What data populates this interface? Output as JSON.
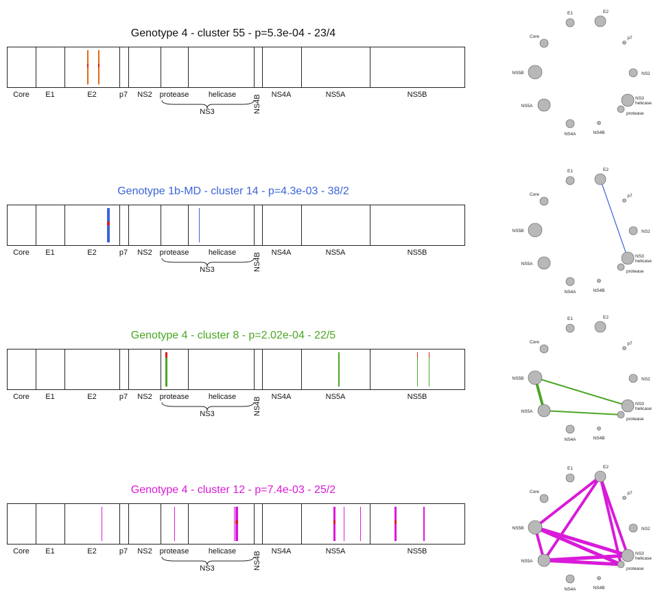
{
  "regions": [
    {
      "name": "Core",
      "label": "Core"
    },
    {
      "name": "E1",
      "label": "E1"
    },
    {
      "name": "E2",
      "label": "E2"
    },
    {
      "name": "p7",
      "label": "p7"
    },
    {
      "name": "NS2",
      "label": "NS2"
    },
    {
      "name": "protease",
      "label": "protease"
    },
    {
      "name": "helicase",
      "label": "helicase"
    },
    {
      "name": "NS4B",
      "label": "NS4B"
    },
    {
      "name": "NS4A",
      "label": "NS4A"
    },
    {
      "name": "NS5A",
      "label": "NS5A"
    },
    {
      "name": "NS5B",
      "label": "NS5B"
    }
  ],
  "ns3_label": "NS3",
  "network_nodes": [
    {
      "id": "E1",
      "label": "E1"
    },
    {
      "id": "E2",
      "label": "E2"
    },
    {
      "id": "Core",
      "label": "Core"
    },
    {
      "id": "p7",
      "label": "p7"
    },
    {
      "id": "NS5B",
      "label": "NS5B"
    },
    {
      "id": "NS2",
      "label": "NS2"
    },
    {
      "id": "NS5A",
      "label": "NS5A"
    },
    {
      "id": "NS3h",
      "label": "NS3\nhelicase"
    },
    {
      "id": "NS3p",
      "label": "protease"
    },
    {
      "id": "NS4A",
      "label": "NS4A"
    },
    {
      "id": "NS4B",
      "label": "NS4B"
    }
  ],
  "panels": [
    {
      "title": "Genotype 4 - cluster 55 - p=5.3e-04 - 23/4",
      "color": "#e06a10",
      "title_color": "#111111",
      "marks": [
        {
          "region": "E2",
          "pos": 0.63,
          "width": 2,
          "accent": true
        },
        {
          "region": "E2",
          "pos": 0.43,
          "width": 2,
          "accent": true
        }
      ],
      "edges": []
    },
    {
      "title": "Genotype 1b-MD - cluster 14 - p=4.3e-03 - 38/2",
      "color": "#3a64d8",
      "title_color": "#3a64d8",
      "marks": [
        {
          "region": "E2",
          "pos": 0.8,
          "width": 4,
          "accent": true
        },
        {
          "region": "helicase",
          "pos": 0.17,
          "width": 1,
          "accent": false
        }
      ],
      "edges": [
        {
          "from": "E2",
          "to": "NS3h",
          "width": 1.2
        }
      ]
    },
    {
      "title": "Genotype 4 - cluster 8 - p=2.02e-04 - 22/5",
      "color": "#4aa622",
      "title_color": "#4aa622",
      "marks": [
        {
          "region": "protease",
          "pos": 0.2,
          "width": 3,
          "accent": true
        },
        {
          "region": "NS5A",
          "pos": 0.55,
          "width": 2,
          "accent": false
        },
        {
          "region": "NS5B",
          "pos": 0.5,
          "width": 1,
          "accent": true
        },
        {
          "region": "NS5B",
          "pos": 0.62,
          "width": 1,
          "accent": true
        }
      ],
      "edges": [
        {
          "from": "NS5B",
          "to": "NS5A",
          "width": 4
        },
        {
          "from": "NS5B",
          "to": "NS3h",
          "width": 2
        },
        {
          "from": "NS5A",
          "to": "NS3p",
          "width": 2
        }
      ]
    },
    {
      "title": "Genotype 4 - cluster 12 - p=7.4e-03 - 25/2",
      "color": "#d91ad9",
      "title_color": "#d91ad9",
      "marks": [
        {
          "region": "E2",
          "pos": 0.68,
          "width": 1,
          "accent": false
        },
        {
          "region": "protease",
          "pos": 0.5,
          "width": 1,
          "accent": false
        },
        {
          "region": "helicase",
          "pos": 0.74,
          "width": 4,
          "accent": true
        },
        {
          "region": "helicase",
          "pos": 0.7,
          "width": 1,
          "accent": false
        },
        {
          "region": "NS5A",
          "pos": 0.48,
          "width": 3,
          "accent": true
        },
        {
          "region": "NS5A",
          "pos": 0.62,
          "width": 1,
          "accent": false
        },
        {
          "region": "NS5A",
          "pos": 0.86,
          "width": 1,
          "accent": false
        },
        {
          "region": "NS5B",
          "pos": 0.27,
          "width": 3,
          "accent": true
        },
        {
          "region": "NS5B",
          "pos": 0.57,
          "width": 2,
          "accent": false
        }
      ],
      "edges": [
        {
          "from": "E2",
          "to": "NS5B",
          "width": 4
        },
        {
          "from": "E2",
          "to": "NS5A",
          "width": 4
        },
        {
          "from": "E2",
          "to": "NS3h",
          "width": 4
        },
        {
          "from": "E2",
          "to": "NS3p",
          "width": 4
        },
        {
          "from": "NS5B",
          "to": "NS5A",
          "width": 4
        },
        {
          "from": "NS5B",
          "to": "NS3h",
          "width": 5
        },
        {
          "from": "NS5B",
          "to": "NS3p",
          "width": 5
        },
        {
          "from": "NS5A",
          "to": "NS3h",
          "width": 5
        },
        {
          "from": "NS5A",
          "to": "NS3p",
          "width": 5
        }
      ]
    }
  ],
  "accent_color": "#d91a1a",
  "node_color": "#b8b8b8"
}
